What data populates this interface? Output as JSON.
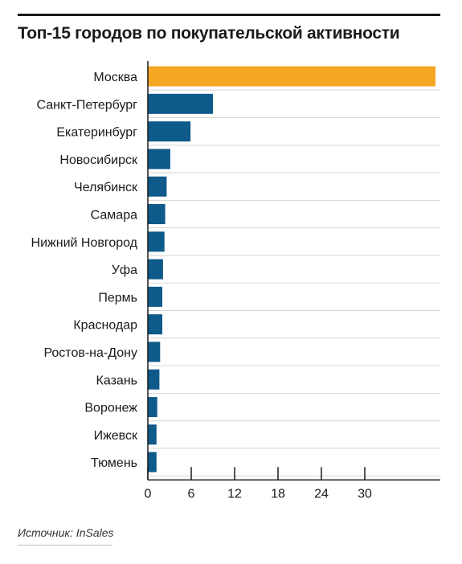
{
  "title": "Топ-15 городов по покупательской активности",
  "source": "Источник: InSales",
  "colors": {
    "highlight": "#F5A623",
    "bar": "#0E5A8A",
    "grid": "#d6d6d6",
    "axis": "#1a1a1a"
  },
  "chart_data": {
    "type": "bar",
    "orientation": "horizontal",
    "title": "Топ-15 городов по покупательской активности",
    "categories": [
      "Москва",
      "Санкт-Петербург",
      "Екатеринбург",
      "Новосибирск",
      "Челябинск",
      "Самара",
      "Нижний Новгород",
      "Уфа",
      "Пермь",
      "Краснодар",
      "Ростов-на-Дону",
      "Казань",
      "Воронеж",
      "Ижевск",
      "Тюмень"
    ],
    "values": [
      40,
      9,
      5.9,
      3.1,
      2.6,
      2.4,
      2.3,
      2.1,
      2.0,
      2.0,
      1.7,
      1.6,
      1.3,
      1.2,
      1.2
    ],
    "xlim": [
      0,
      40
    ],
    "xticks": [
      0,
      6,
      12,
      18,
      24,
      30
    ],
    "grid": "horizontal separators between categories",
    "legend": "none"
  }
}
